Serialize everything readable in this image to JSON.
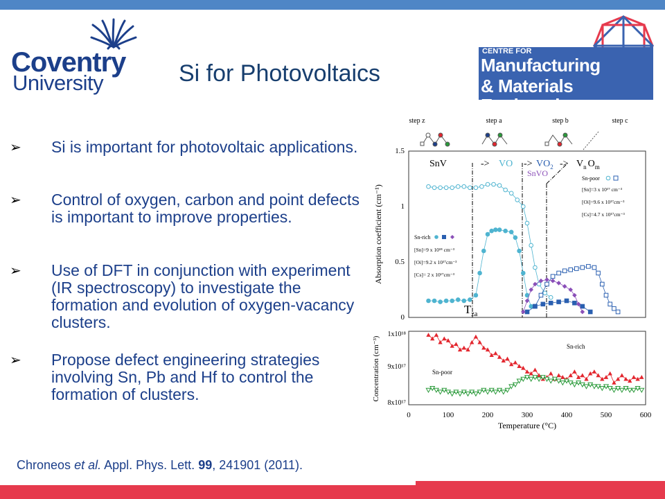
{
  "header": {
    "university_line1": "Coventry",
    "university_line2": "University",
    "title": "Si for Photovoltaics",
    "centre_line1": "CENTRE FOR",
    "centre_line2": "Manufacturing",
    "centre_line3": "& Materials Engineering"
  },
  "colors": {
    "accent_blue": "#4f86c6",
    "accent_red": "#e63a4d",
    "text_blue": "#1c3f8a"
  },
  "bullets": [
    {
      "text": "Si is important for photovoltaic applications."
    },
    {
      "text": "Control of oxygen, carbon and point defects is important to improve properties."
    },
    {
      "text": "Use of DFT in conjunction with experiment (IR spectroscopy) to investigate the formation and evolution of oxygen-vacancy clusters."
    },
    {
      "text": "Propose defect engineering strategies involving Sn, Pb and Hf to control the formation of clusters."
    }
  ],
  "citation": {
    "authors": "Chroneos",
    "etal": "et al.",
    "journal": "Appl. Phys. Lett.",
    "volume": "99",
    "rest": ", 241901 (2011)."
  },
  "chart_data": {
    "type": "scatter",
    "steps": [
      "step z",
      "step a",
      "step b",
      "step c"
    ],
    "phase_labels": {
      "snv": "SnV",
      "arrow1": "->",
      "vo": "VO",
      "arrow2": "->",
      "vo2": "VO",
      "vo2_sub": "2",
      "arrow3": "->",
      "vnom_v": "V",
      "vnom_n": "n",
      "vnom_o": "O",
      "vnom_m": "m",
      "snvo": "SnVO",
      "tza": "T",
      "tza_sub": "za"
    },
    "top_panel": {
      "ylabel": "Absorption coefficient  (cm⁻¹)",
      "ylim": [
        0,
        1.5
      ],
      "yticks": [
        "0",
        "0.5",
        "1",
        "1.5"
      ],
      "legend_snpoor": {
        "title": "Sn-poor",
        "lines": [
          "[Sn]=3 x 10¹⁷ cm⁻³",
          "[Oi]=9.6 x 10¹⁷cm⁻³",
          "[Cs]=4.7 x 10¹⁷cm⁻³"
        ]
      },
      "legend_snrich": {
        "title": "Sn-rich",
        "lines": [
          "[Sn]=9 x 10¹⁸ cm⁻³",
          "[Oi]=9.2 x 10¹⁷cm⁻³",
          "[Cs]= 2 x 10¹⁷cm⁻³"
        ]
      },
      "series": [
        {
          "name": "Sn-poor",
          "color": "#4fb4d0",
          "marker": "open-circle",
          "x": [
            50,
            65,
            80,
            95,
            110,
            125,
            140,
            155,
            170,
            185,
            200,
            215,
            230,
            245,
            260,
            275,
            290,
            300,
            310,
            320,
            330,
            345,
            360
          ],
          "y": [
            1.18,
            1.17,
            1.17,
            1.17,
            1.17,
            1.18,
            1.18,
            1.17,
            1.17,
            1.18,
            1.2,
            1.2,
            1.19,
            1.15,
            1.12,
            1.06,
            1.0,
            0.85,
            0.65,
            0.45,
            0.3,
            0.22,
            0.18
          ]
        },
        {
          "name": "Sn-rich",
          "color": "#4fb4d0",
          "marker": "filled-circle",
          "x": [
            50,
            65,
            80,
            95,
            110,
            125,
            140,
            155,
            170,
            180,
            190,
            200,
            210,
            220,
            230,
            245,
            260,
            270,
            280,
            290,
            300,
            310
          ],
          "y": [
            0.15,
            0.15,
            0.14,
            0.15,
            0.15,
            0.16,
            0.15,
            0.16,
            0.2,
            0.4,
            0.6,
            0.75,
            0.78,
            0.79,
            0.79,
            0.78,
            0.77,
            0.72,
            0.6,
            0.4,
            0.2,
            0.1
          ]
        },
        {
          "name": "Sn-poor",
          "color": "#2a5fb0",
          "marker": "open-square",
          "x": [
            320,
            335,
            350,
            365,
            380,
            395,
            410,
            425,
            440,
            455,
            470,
            480,
            490,
            500,
            510,
            520,
            530
          ],
          "y": [
            0.1,
            0.2,
            0.3,
            0.37,
            0.4,
            0.42,
            0.43,
            0.44,
            0.45,
            0.46,
            0.45,
            0.4,
            0.3,
            0.2,
            0.12,
            0.08,
            0.05
          ]
        },
        {
          "name": "Sn-rich",
          "color": "#2a5fb0",
          "marker": "filled-square",
          "x": [
            300,
            320,
            340,
            360,
            380,
            400,
            420,
            440,
            460
          ],
          "y": [
            0.05,
            0.1,
            0.12,
            0.13,
            0.14,
            0.15,
            0.13,
            0.1,
            0.05
          ]
        },
        {
          "name": "SnVO",
          "color": "#8a4fb8",
          "marker": "filled-diamond",
          "x": [
            290,
            300,
            310,
            320,
            335,
            350,
            365,
            380,
            395,
            410,
            420,
            430,
            440
          ],
          "y": [
            0.05,
            0.15,
            0.25,
            0.3,
            0.33,
            0.34,
            0.33,
            0.31,
            0.28,
            0.25,
            0.2,
            0.12,
            0.05
          ]
        }
      ]
    },
    "bottom_panel": {
      "ylabel": "Concentration (cm⁻³)",
      "yticks": [
        "8x10¹⁷",
        "9x10¹⁷",
        "1x10¹⁸"
      ],
      "ylim": [
        8e+17,
        1e+18
      ],
      "label_snrich": "Sn-rich",
      "label_snpoor": "Sn-poor",
      "series": [
        {
          "name": "Sn-rich",
          "color": "#e3262e",
          "marker": "filled-triangle-up",
          "x": [
            50,
            60,
            70,
            80,
            90,
            100,
            110,
            120,
            130,
            140,
            150,
            160,
            170,
            180,
            190,
            200,
            210,
            220,
            230,
            240,
            250,
            260,
            270,
            280,
            290,
            300,
            310,
            320,
            330,
            340,
            350,
            360,
            370,
            380,
            390,
            400,
            410,
            420,
            430,
            440,
            450,
            460,
            470,
            480,
            490,
            500,
            510,
            520,
            530,
            540,
            550,
            560,
            570,
            580,
            590
          ],
          "y": [
            9.9e+17,
            9.8e+17,
            9.9e+17,
            9.7e+17,
            9.8e+17,
            9.75e+17,
            9.6e+17,
            9.65e+17,
            9.5e+17,
            9.55e+17,
            9.5e+17,
            9.7e+17,
            9.85e+17,
            9.7e+17,
            9.55e+17,
            9.5e+17,
            9.35e+17,
            9.4e+17,
            9.3e+17,
            9.2e+17,
            9.25e+17,
            9.1e+17,
            9.15e+17,
            9.05e+17,
            9e+17,
            8.9e+17,
            8.85e+17,
            8.95e+17,
            8.8e+17,
            8.7e+17,
            8.75e+17,
            8.85e+17,
            8.7e+17,
            8.8e+17,
            8.75e+17,
            8.7e+17,
            8.8e+17,
            8.9e+17,
            8.75e+17,
            8.8e+17,
            8.7e+17,
            8.85e+17,
            8.9e+17,
            8.8e+17,
            8.7e+17,
            8.75e+17,
            8.85e+17,
            8.6e+17,
            8.7e+17,
            8.8e+17,
            8.7e+17,
            8.65e+17,
            8.75e+17,
            8.7e+17,
            8.75e+17
          ]
        },
        {
          "name": "Sn-poor",
          "color": "#2a9a3a",
          "marker": "open-triangle-down",
          "x": [
            50,
            60,
            70,
            80,
            90,
            100,
            110,
            120,
            130,
            140,
            150,
            160,
            170,
            180,
            190,
            200,
            210,
            220,
            230,
            240,
            250,
            260,
            270,
            280,
            290,
            300,
            310,
            320,
            330,
            340,
            350,
            360,
            370,
            380,
            390,
            400,
            410,
            420,
            430,
            440,
            450,
            460,
            470,
            480,
            490,
            500,
            510,
            520,
            530,
            540,
            550,
            560,
            570,
            580,
            590
          ],
          "y": [
            8.4e+17,
            8.45e+17,
            8.4e+17,
            8.35e+17,
            8.4e+17,
            8.35e+17,
            8.3e+17,
            8.35e+17,
            8.3e+17,
            8.35e+17,
            8.3e+17,
            8.35e+17,
            8.3e+17,
            8.35e+17,
            8.4e+17,
            8.35e+17,
            8.4e+17,
            8.35e+17,
            8.4e+17,
            8.35e+17,
            8.4e+17,
            8.5e+17,
            8.55e+17,
            8.65e+17,
            8.7e+17,
            8.75e+17,
            8.7e+17,
            8.75e+17,
            8.7e+17,
            8.75e+17,
            8.7e+17,
            8.65e+17,
            8.7e+17,
            8.65e+17,
            8.6e+17,
            8.65e+17,
            8.6e+17,
            8.55e+17,
            8.6e+17,
            8.55e+17,
            8.5e+17,
            8.55e+17,
            8.5e+17,
            8.5e+17,
            8.45e+17,
            8.5e+17,
            8.45e+17,
            8.4e+17,
            8.45e+17,
            8.4e+17,
            8.45e+17,
            8.4e+17,
            8.4e+17,
            8.45e+17,
            8.4e+17
          ]
        }
      ]
    },
    "xlabel": "Temperature (°C)",
    "xticks": [
      "0",
      "100",
      "200",
      "300",
      "400",
      "500",
      "600"
    ],
    "xlim": [
      0,
      600
    ]
  }
}
